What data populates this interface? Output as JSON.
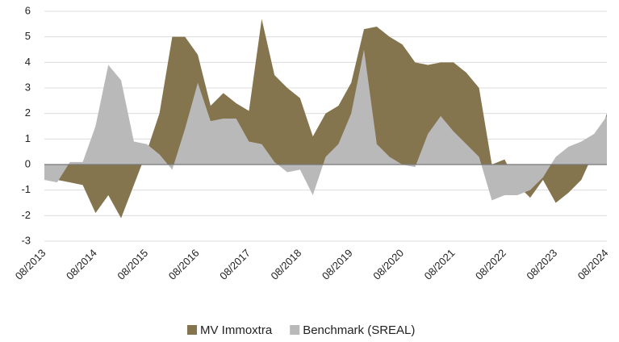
{
  "chart_data": {
    "type": "area",
    "categories": [
      "08/2013",
      null,
      null,
      null,
      "08/2014",
      null,
      null,
      null,
      "08/2015",
      null,
      null,
      null,
      "08/2016",
      null,
      null,
      null,
      "08/2017",
      null,
      null,
      null,
      "08/2018",
      null,
      null,
      null,
      "08/2019",
      null,
      null,
      null,
      "08/2020",
      null,
      null,
      null,
      "08/2021",
      null,
      null,
      null,
      "08/2022",
      null,
      null,
      null,
      "08/2023",
      null,
      null,
      null,
      "08/2024"
    ],
    "series": [
      {
        "name": "MV Immoxtra",
        "color": "#85754e",
        "values": [
          -0.6,
          -0.6,
          -0.7,
          -0.8,
          -1.9,
          -1.2,
          -2.1,
          -0.8,
          0.5,
          2.0,
          5.0,
          5.0,
          4.3,
          2.3,
          2.8,
          2.4,
          2.1,
          5.7,
          3.5,
          3.0,
          2.6,
          1.1,
          2.0,
          2.3,
          3.2,
          5.3,
          5.4,
          5.0,
          4.7,
          4.0,
          3.9,
          4.0,
          4.0,
          3.6,
          3.0,
          0.0,
          0.2,
          -0.8,
          -1.3,
          -0.6,
          -1.5,
          -1.1,
          -0.6,
          0.5,
          2.0
        ]
      },
      {
        "name": "Benchmark (SREAL)",
        "color": "#b9b9b9",
        "values": [
          -0.6,
          -0.7,
          0.1,
          0.1,
          1.5,
          3.9,
          3.3,
          0.9,
          0.8,
          0.4,
          -0.2,
          1.4,
          3.2,
          1.7,
          1.8,
          1.8,
          0.9,
          0.8,
          0.1,
          -0.3,
          -0.2,
          -1.2,
          0.3,
          0.8,
          2.0,
          4.5,
          0.8,
          0.3,
          0.0,
          -0.1,
          1.2,
          1.9,
          1.3,
          0.8,
          0.3,
          -1.4,
          -1.2,
          -1.2,
          -1.0,
          -0.5,
          0.3,
          0.7,
          0.9,
          1.2,
          1.9
        ]
      }
    ],
    "ylim": [
      -3,
      6
    ],
    "yticks": [
      -3,
      -2,
      -1,
      0,
      1,
      2,
      3,
      4,
      5,
      6
    ],
    "grid": true,
    "legend": "bottom"
  }
}
